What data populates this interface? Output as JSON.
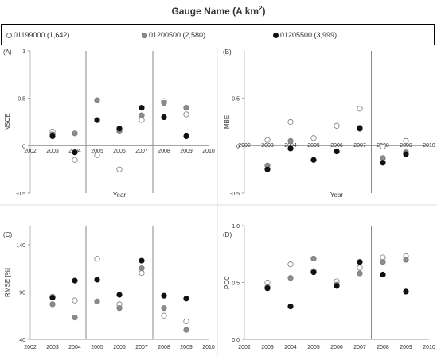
{
  "legend": {
    "title": "Gauge Name (A km",
    "title_sup": "2",
    "title_close": ")",
    "items": [
      {
        "label": "01199000 (1,642)",
        "fill": "#ffffff",
        "stroke": "#666666"
      },
      {
        "label": "01200500 (2,580)",
        "fill": "#8c8c8c",
        "stroke": "#666666"
      },
      {
        "label": "01205500 (3,999)",
        "fill": "#111111",
        "stroke": "#111111"
      }
    ]
  },
  "chart_data": [
    {
      "type": "scatter",
      "panel": "(A)",
      "ylabel": "NSCE",
      "xlabel": "Year",
      "xlim": [
        2002,
        2010
      ],
      "ylim": [
        -0.5,
        1
      ],
      "xticks": [
        "2002",
        "2003",
        "2004",
        "2005",
        "2006",
        "2007",
        "2008",
        "2009",
        "2010"
      ],
      "yticks": [
        {
          "v": -0.5,
          "t": "-0.5"
        },
        {
          "v": 0,
          "t": "0"
        },
        {
          "v": 0.5,
          "t": "0.5"
        },
        {
          "v": 1,
          "t": "1"
        }
      ],
      "dividers": [
        2004.5,
        2007.5
      ],
      "series": [
        {
          "name": "01199000 (1,642)",
          "x": [
            2003,
            2004,
            2005,
            2006,
            2007,
            2008,
            2009
          ],
          "y": [
            0.15,
            -0.15,
            -0.1,
            -0.25,
            0.27,
            0.47,
            0.33
          ]
        },
        {
          "name": "01200500 (2,580)",
          "x": [
            2003,
            2004,
            2005,
            2006,
            2007,
            2008,
            2009
          ],
          "y": [
            0.12,
            0.13,
            0.48,
            0.15,
            0.32,
            0.45,
            0.4
          ]
        },
        {
          "name": "01205500 (3,999)",
          "x": [
            2003,
            2004,
            2005,
            2006,
            2007,
            2008,
            2009
          ],
          "y": [
            0.1,
            -0.07,
            0.27,
            0.18,
            0.4,
            0.3,
            0.1
          ]
        }
      ]
    },
    {
      "type": "scatter",
      "panel": "(B)",
      "ylabel": "MBE",
      "xlabel": "Year",
      "xlim": [
        2002,
        2010
      ],
      "ylim": [
        -0.5,
        1
      ],
      "xticks": [
        "2002",
        "2003",
        "2004",
        "2005",
        "2006",
        "2007",
        "2008",
        "2009",
        "2010"
      ],
      "yticks": [
        {
          "v": -0.5,
          "t": "-0.5"
        },
        {
          "v": 0,
          "t": "0"
        },
        {
          "v": 0.5,
          "t": "0.5"
        }
      ],
      "dividers": [
        2004.5,
        2007.5
      ],
      "series": [
        {
          "name": "01199000 (1,642)",
          "x": [
            2003,
            2004,
            2005,
            2006,
            2007,
            2008,
            2009
          ],
          "y": [
            0.06,
            0.25,
            0.08,
            0.21,
            0.39,
            -0.01,
            0.05
          ]
        },
        {
          "name": "01200500 (2,580)",
          "x": [
            2003,
            2004,
            2005,
            2006,
            2007,
            2008,
            2009
          ],
          "y": [
            -0.21,
            0.05,
            -0.15,
            -0.06,
            0.19,
            -0.13,
            -0.07
          ]
        },
        {
          "name": "01205500 (3,999)",
          "x": [
            2003,
            2004,
            2005,
            2006,
            2007,
            2008,
            2009
          ],
          "y": [
            -0.25,
            -0.03,
            -0.15,
            -0.06,
            0.18,
            -0.18,
            -0.09
          ]
        }
      ]
    },
    {
      "type": "scatter",
      "panel": "(C)",
      "ylabel": "RMSE [%]",
      "xlabel": "",
      "xlim": [
        2002,
        2010
      ],
      "ylim": [
        40,
        160
      ],
      "xticks": [
        "2002",
        "2003",
        "2004",
        "2005",
        "2006",
        "2007",
        "2008",
        "2009",
        "2010"
      ],
      "yticks": [
        {
          "v": 40,
          "t": "40"
        },
        {
          "v": 90,
          "t": "90"
        },
        {
          "v": 140,
          "t": "140"
        }
      ],
      "dividers": [
        2004.5,
        2007.5
      ],
      "series": [
        {
          "name": "01199000 (1,642)",
          "x": [
            2003,
            2004,
            2005,
            2006,
            2007,
            2008,
            2009
          ],
          "y": [
            85,
            81,
            125,
            77,
            110,
            65,
            59
          ]
        },
        {
          "name": "01200500 (2,580)",
          "x": [
            2003,
            2004,
            2005,
            2006,
            2007,
            2008,
            2009
          ],
          "y": [
            77,
            63,
            80,
            73,
            115,
            73,
            50
          ]
        },
        {
          "name": "01205500 (3,999)",
          "x": [
            2003,
            2004,
            2005,
            2006,
            2007,
            2008,
            2009
          ],
          "y": [
            84,
            102,
            103,
            87,
            123,
            86,
            83
          ]
        }
      ]
    },
    {
      "type": "scatter",
      "panel": "(D)",
      "ylabel": "PCC",
      "xlabel": "",
      "xlim": [
        2002,
        2010
      ],
      "ylim": [
        0,
        1
      ],
      "xticks": [
        "2002",
        "2003",
        "2004",
        "2005",
        "2006",
        "2007",
        "2008",
        "2009",
        "2010"
      ],
      "yticks": [
        {
          "v": 0,
          "t": "0.0"
        },
        {
          "v": 0.5,
          "t": "0.5"
        },
        {
          "v": 1,
          "t": "1.0"
        }
      ],
      "dividers": [
        2004.5,
        2007.5
      ],
      "series": [
        {
          "name": "01199000 (1,642)",
          "x": [
            2003,
            2004,
            2005,
            2006,
            2007,
            2008,
            2009
          ],
          "y": [
            0.5,
            0.66,
            0.6,
            0.51,
            0.63,
            0.72,
            0.73
          ]
        },
        {
          "name": "01200500 (2,580)",
          "x": [
            2003,
            2004,
            2005,
            2006,
            2007,
            2008,
            2009
          ],
          "y": [
            0.46,
            0.54,
            0.71,
            0.48,
            0.58,
            0.68,
            0.7
          ]
        },
        {
          "name": "01205500 (3,999)",
          "x": [
            2003,
            2004,
            2005,
            2006,
            2007,
            2008,
            2009
          ],
          "y": [
            0.45,
            0.29,
            0.59,
            0.47,
            0.68,
            0.57,
            0.42
          ]
        }
      ]
    }
  ]
}
